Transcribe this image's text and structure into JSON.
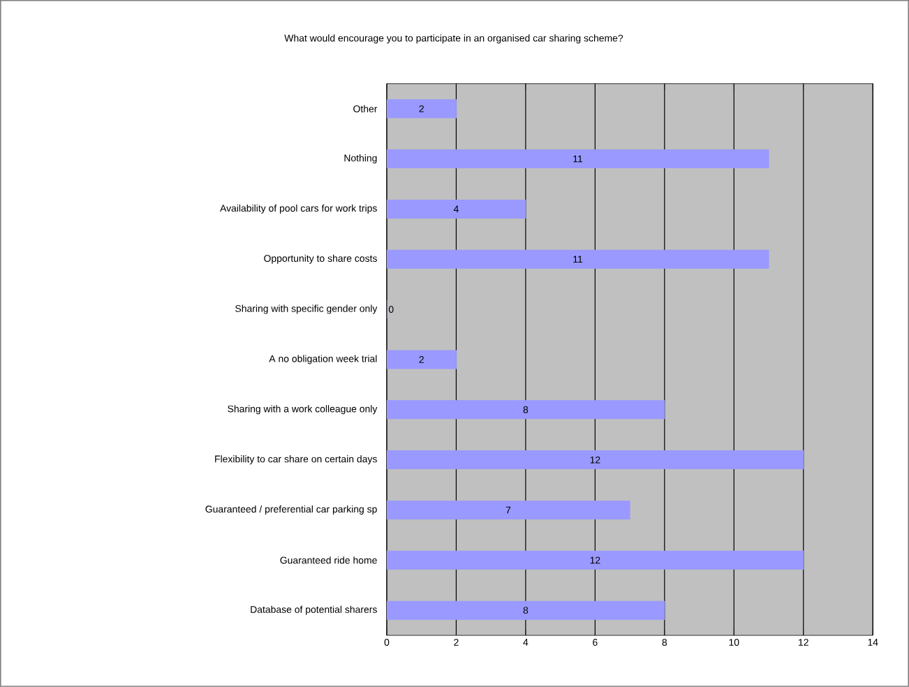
{
  "chart_data": {
    "type": "bar",
    "orientation": "horizontal",
    "title": "What would encourage you to participate in an organised car sharing scheme?",
    "categories": [
      "Other",
      "Nothing",
      "Availability of pool cars for work trips",
      "Opportunity to share costs",
      "Sharing with specific gender only",
      "A no obligation week trial",
      "Sharing with a work colleague only",
      "Flexibility to car share on certain days",
      "Guaranteed / preferential car parking sp",
      "Guaranteed ride home",
      "Database of potential sharers"
    ],
    "values": [
      2,
      11,
      4,
      11,
      0,
      2,
      8,
      12,
      7,
      12,
      8
    ],
    "color": "#9999ff",
    "xlim": [
      0,
      14
    ],
    "xticks": [
      0,
      2,
      4,
      6,
      8,
      10,
      12,
      14
    ],
    "grid": "x",
    "data_labels": true
  }
}
